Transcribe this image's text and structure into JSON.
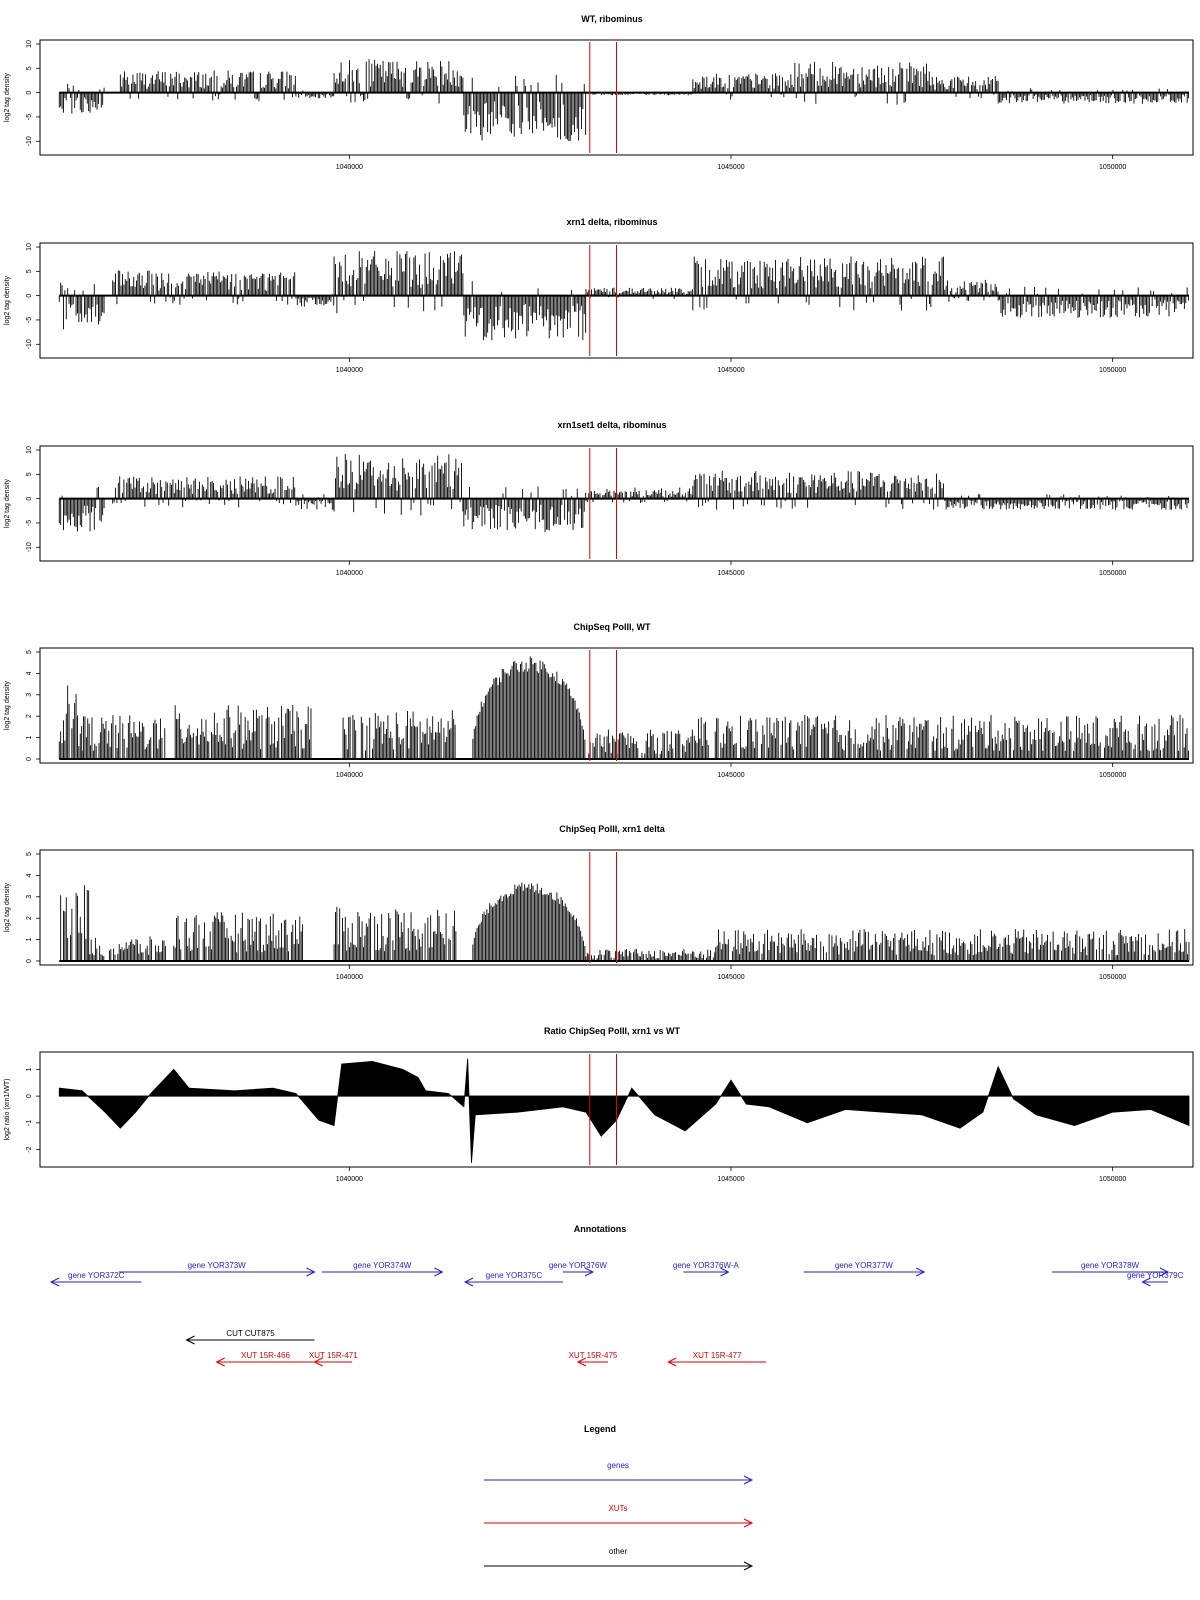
{
  "colors": {
    "marker": "#e00000",
    "genes": "#1f1fe0",
    "xuts": "#e00000",
    "other": "#000000",
    "bars": "#000000"
  },
  "chart_data": [
    {
      "type": "bar",
      "title": "WT, ribominus",
      "ylabel": "log2 tag density",
      "xlim": [
        1036000,
        1051000
      ],
      "ylim": [
        -12,
        10
      ],
      "yticks": [
        10,
        5,
        0,
        -5,
        -10
      ],
      "xticks": [
        1040000,
        1045000,
        1050000
      ],
      "markers": [
        1043150,
        1043500
      ],
      "segments": [
        {
          "from": 1036200,
          "to": 1036800,
          "value": -4
        },
        {
          "from": 1037000,
          "to": 1039300,
          "value": 4
        },
        {
          "from": 1039300,
          "to": 1039800,
          "value": -1
        },
        {
          "from": 1039800,
          "to": 1041500,
          "value": 6
        },
        {
          "from": 1041500,
          "to": 1043100,
          "value": -9
        },
        {
          "from": 1043100,
          "to": 1044500,
          "value": -0.5
        },
        {
          "from": 1044500,
          "to": 1045800,
          "value": 3.5
        },
        {
          "from": 1045800,
          "to": 1047600,
          "value": 5.5
        },
        {
          "from": 1047600,
          "to": 1048500,
          "value": 3
        },
        {
          "from": 1048500,
          "to": 1051000,
          "value": -2
        }
      ]
    },
    {
      "type": "bar",
      "title": "xrn1 delta, ribominus",
      "ylabel": "log2 tag density",
      "xlim": [
        1036000,
        1051000
      ],
      "ylim": [
        -12,
        10
      ],
      "yticks": [
        10,
        5,
        0,
        -5,
        -10
      ],
      "xticks": [
        1040000,
        1045000,
        1050000
      ],
      "markers": [
        1043150,
        1043500
      ],
      "segments": [
        {
          "from": 1036200,
          "to": 1036800,
          "value": -6
        },
        {
          "from": 1036900,
          "to": 1039300,
          "value": 4.5
        },
        {
          "from": 1039300,
          "to": 1039800,
          "value": -2
        },
        {
          "from": 1039800,
          "to": 1041500,
          "value": 8
        },
        {
          "from": 1041500,
          "to": 1043100,
          "value": -8
        },
        {
          "from": 1043100,
          "to": 1044500,
          "value": 1.5
        },
        {
          "from": 1044500,
          "to": 1047800,
          "value": 7
        },
        {
          "from": 1047800,
          "to": 1048500,
          "value": 3
        },
        {
          "from": 1048500,
          "to": 1051000,
          "value": -4
        }
      ]
    },
    {
      "type": "bar",
      "title": "xrn1set1 delta, ribominus",
      "ylabel": "log2 tag density",
      "xlim": [
        1036000,
        1051000
      ],
      "ylim": [
        -12,
        10
      ],
      "yticks": [
        10,
        5,
        0,
        -5,
        -10
      ],
      "xticks": [
        1040000,
        1045000,
        1050000
      ],
      "markers": [
        1043150,
        1043500
      ],
      "segments": [
        {
          "from": 1036200,
          "to": 1036800,
          "value": -6
        },
        {
          "from": 1036900,
          "to": 1039300,
          "value": 4
        },
        {
          "from": 1039300,
          "to": 1039800,
          "value": -2
        },
        {
          "from": 1039800,
          "to": 1041500,
          "value": 8
        },
        {
          "from": 1041500,
          "to": 1043100,
          "value": -6
        },
        {
          "from": 1043100,
          "to": 1044500,
          "value": 2
        },
        {
          "from": 1044500,
          "to": 1047800,
          "value": 5
        },
        {
          "from": 1047800,
          "to": 1051000,
          "value": -2
        }
      ]
    },
    {
      "type": "bar",
      "title": "ChipSeq PolII, WT",
      "ylabel": "log2 tag density",
      "xlim": [
        1036000,
        1051000
      ],
      "ylim": [
        0,
        5
      ],
      "yticks": [
        5,
        4,
        3,
        2,
        1,
        0
      ],
      "xticks": [
        1040000,
        1045000,
        1050000
      ],
      "markers": [
        1043150,
        1043500
      ],
      "segments": [
        {
          "from": 1036200,
          "to": 1036500,
          "value": 3
        },
        {
          "from": 1036500,
          "to": 1037600,
          "value": 1.8
        },
        {
          "from": 1037700,
          "to": 1039500,
          "value": 2.2
        },
        {
          "from": 1039900,
          "to": 1041400,
          "value": 2
        },
        {
          "from": 1041600,
          "to": 1043100,
          "value": 4.8,
          "shape": "dome"
        },
        {
          "from": 1043100,
          "to": 1044500,
          "value": 1.2
        },
        {
          "from": 1044500,
          "to": 1051000,
          "value": 1.8
        }
      ]
    },
    {
      "type": "bar",
      "title": "ChipSeq PolII, xrn1 delta",
      "ylabel": "log2 tag density",
      "xlim": [
        1036000,
        1051000
      ],
      "ylim": [
        0,
        5
      ],
      "yticks": [
        5,
        4,
        3,
        2,
        1,
        0
      ],
      "xticks": [
        1040000,
        1045000,
        1050000
      ],
      "markers": [
        1043150,
        1043500
      ],
      "segments": [
        {
          "from": 1036200,
          "to": 1036600,
          "value": 3.2
        },
        {
          "from": 1036600,
          "to": 1037600,
          "value": 1
        },
        {
          "from": 1037700,
          "to": 1039400,
          "value": 2
        },
        {
          "from": 1039800,
          "to": 1041400,
          "value": 2.2
        },
        {
          "from": 1041600,
          "to": 1043100,
          "value": 3.7,
          "shape": "dome"
        },
        {
          "from": 1043100,
          "to": 1044800,
          "value": 0.5
        },
        {
          "from": 1044800,
          "to": 1051000,
          "value": 1.3
        }
      ]
    },
    {
      "type": "area",
      "title": "Ratio ChipSeq PolII, xrn1 vs WT",
      "ylabel": "log2 ratio (xrn1/WT)",
      "xlim": [
        1036000,
        1051000
      ],
      "ylim": [
        -2.5,
        1.5
      ],
      "yticks": [
        1,
        0,
        -1,
        -2
      ],
      "xticks": [
        1040000,
        1045000,
        1050000
      ],
      "markers": [
        1043150,
        1043500
      ],
      "points": [
        [
          1036200,
          0.3
        ],
        [
          1036500,
          0.2
        ],
        [
          1036800,
          -0.6
        ],
        [
          1037000,
          -1.2
        ],
        [
          1037200,
          -0.6
        ],
        [
          1037400,
          0.1
        ],
        [
          1037700,
          1.0
        ],
        [
          1037900,
          0.3
        ],
        [
          1038500,
          0.2
        ],
        [
          1039000,
          0.3
        ],
        [
          1039300,
          0.1
        ],
        [
          1039600,
          -0.9
        ],
        [
          1039800,
          -1.1
        ],
        [
          1039900,
          1.2
        ],
        [
          1040300,
          1.3
        ],
        [
          1040700,
          1.0
        ],
        [
          1040900,
          0.7
        ],
        [
          1041000,
          0.2
        ],
        [
          1041300,
          0.1
        ],
        [
          1041500,
          -0.4
        ],
        [
          1041550,
          1.4
        ],
        [
          1041600,
          -2.5
        ],
        [
          1041650,
          -0.7
        ],
        [
          1042200,
          -0.6
        ],
        [
          1042800,
          -0.4
        ],
        [
          1043100,
          -0.6
        ],
        [
          1043300,
          -1.5
        ],
        [
          1043500,
          -0.9
        ],
        [
          1043700,
          0.3
        ],
        [
          1044000,
          -0.7
        ],
        [
          1044400,
          -1.3
        ],
        [
          1044800,
          -0.3
        ],
        [
          1045000,
          0.6
        ],
        [
          1045200,
          -0.3
        ],
        [
          1045500,
          -0.4
        ],
        [
          1046000,
          -1.0
        ],
        [
          1046500,
          -0.5
        ],
        [
          1047000,
          -0.6
        ],
        [
          1047500,
          -0.7
        ],
        [
          1048000,
          -1.2
        ],
        [
          1048300,
          -0.6
        ],
        [
          1048500,
          1.1
        ],
        [
          1048700,
          -0.1
        ],
        [
          1049000,
          -0.7
        ],
        [
          1049500,
          -1.1
        ],
        [
          1050000,
          -0.6
        ],
        [
          1050500,
          -0.5
        ],
        [
          1051000,
          -1.1
        ]
      ]
    }
  ],
  "annotations": {
    "title": "Annotations",
    "items": [
      {
        "label": "gene YOR372C",
        "from": 1036200,
        "to": 1037400,
        "row": 2,
        "color": "genes",
        "dir": "left"
      },
      {
        "label": "gene YOR373W",
        "from": 1037100,
        "to": 1039700,
        "row": 1,
        "color": "genes",
        "dir": "right"
      },
      {
        "label": "gene YOR374W",
        "from": 1039800,
        "to": 1041400,
        "row": 1,
        "color": "genes",
        "dir": "right"
      },
      {
        "label": "gene YOR375C",
        "from": 1041700,
        "to": 1043000,
        "row": 2,
        "color": "genes",
        "dir": "left"
      },
      {
        "label": "gene YOR376W",
        "from": 1043000,
        "to": 1043400,
        "row": 1,
        "color": "genes",
        "dir": "right"
      },
      {
        "label": "gene YOR376W-A",
        "from": 1044600,
        "to": 1045200,
        "row": 1,
        "color": "genes",
        "dir": "right"
      },
      {
        "label": "gene YOR377W",
        "from": 1046200,
        "to": 1047800,
        "row": 1,
        "color": "genes",
        "dir": "right"
      },
      {
        "label": "gene YOR378W",
        "from": 1049500,
        "to": 1051200,
        "row": 1,
        "color": "genes",
        "dir": "right"
      },
      {
        "label": "gene YOR379C",
        "from": 1050700,
        "to": 1051200,
        "row": 2,
        "color": "genes",
        "dir": "left"
      },
      {
        "label": "CUT CUT875",
        "from": 1038000,
        "to": 1039700,
        "row": 3,
        "color": "other",
        "dir": "left"
      },
      {
        "label": "XUT 15R-466",
        "from": 1038400,
        "to": 1039700,
        "row": 4,
        "color": "xuts",
        "dir": "left"
      },
      {
        "label": "XUT 15R-471",
        "from": 1039700,
        "to": 1040200,
        "row": 4,
        "color": "xuts",
        "dir": "left"
      },
      {
        "label": "XUT 15R-475",
        "from": 1043200,
        "to": 1043600,
        "row": 4,
        "color": "xuts",
        "dir": "left"
      },
      {
        "label": "XUT 15R-477",
        "from": 1044400,
        "to": 1045700,
        "row": 4,
        "color": "xuts",
        "dir": "left"
      }
    ]
  },
  "legend": {
    "title": "Legend",
    "items": [
      {
        "label": "genes",
        "color": "genes"
      },
      {
        "label": "XUTs",
        "color": "xuts"
      },
      {
        "label": "other",
        "color": "other"
      }
    ]
  }
}
